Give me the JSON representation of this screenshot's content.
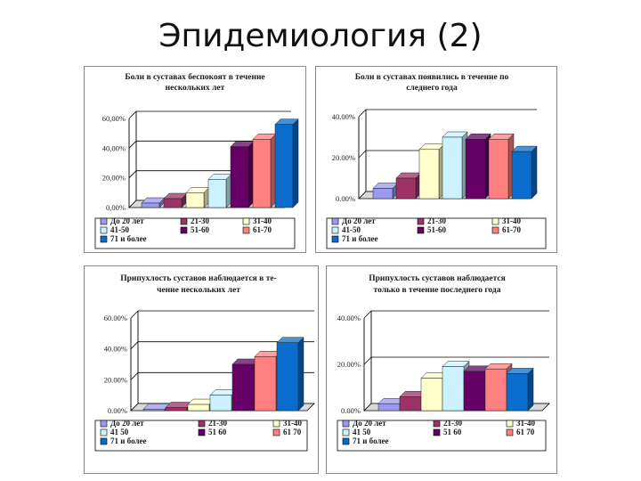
{
  "slide": {
    "title": "Эпидемиология (2)"
  },
  "chart_data": [
    {
      "type": "bar",
      "title": [
        "Боли в суставах беспокоят в течение",
        "нескольких лет"
      ],
      "categories": [
        "До 20 лет",
        "21-30",
        "31-40",
        "41-50",
        "51-60",
        "61-70",
        "71 и более"
      ],
      "values": [
        3,
        6,
        10,
        19,
        41,
        46,
        56
      ],
      "ylim": [
        0,
        60
      ],
      "yticks": [
        "0,00%",
        "20,00%",
        "40,00%",
        "60,00%"
      ],
      "legend_labels": [
        "До 20 лет",
        "21-30",
        "31-40",
        "41-50",
        "51-60",
        "61-70",
        "71 и более"
      ],
      "legend": "bottom"
    },
    {
      "type": "bar",
      "title": [
        "Боли в суставах появились в течение по",
        "следнего года"
      ],
      "categories": [
        "До 20 лет",
        "21-30",
        "31-40",
        "41-50",
        "51-60",
        "61-70",
        "71 и более"
      ],
      "values": [
        5,
        10,
        24,
        30,
        29,
        29,
        23
      ],
      "ylim": [
        0,
        40
      ],
      "yticks": [
        "0.00%",
        "20.00%",
        "40.00%"
      ],
      "legend_labels": [
        "До 20 лет",
        "21-30",
        "31-40",
        "41-50",
        "51-60",
        "61-70",
        "71 и более"
      ],
      "legend": "bottom"
    },
    {
      "type": "bar",
      "title": [
        "Припухлость суставов наблюдается в те-",
        "чение нескольких лет"
      ],
      "categories": [
        "До 20 лет",
        "21-30",
        "31-40",
        "41 50",
        "51 60",
        "61 70",
        "71 и более"
      ],
      "values": [
        1,
        2,
        4,
        10,
        30,
        35,
        44
      ],
      "ylim": [
        0,
        60
      ],
      "yticks": [
        "0.00%",
        "20.00%",
        "40.00%",
        "60.00%"
      ],
      "legend_labels": [
        "До 20 лет",
        "21-30",
        "31-40",
        "41 50",
        "51 60",
        "61 70",
        "71 и более"
      ],
      "legend": "bottom"
    },
    {
      "type": "bar",
      "title": [
        "Припухлость суставов наблюдается",
        "только в течение последнего года"
      ],
      "categories": [
        "До 20 лет",
        "21-30",
        "31-40",
        "41 50",
        "51 60",
        "61 70",
        "71 и более"
      ],
      "values": [
        3,
        6,
        14,
        19,
        17,
        18,
        16
      ],
      "ylim": [
        0,
        40
      ],
      "yticks": [
        "0.00%",
        "20.00%",
        "40.00%"
      ],
      "legend_labels": [
        "До 20 лет",
        "21-30",
        "31-40",
        "41 50",
        "51 60",
        "61 70",
        "71 и более"
      ],
      "legend": "bottom"
    }
  ],
  "colors": [
    "#9a9aee",
    "#9c3366",
    "#ffffcc",
    "#ccf2ff",
    "#660066",
    "#ff8080",
    "#0a6ccc"
  ]
}
